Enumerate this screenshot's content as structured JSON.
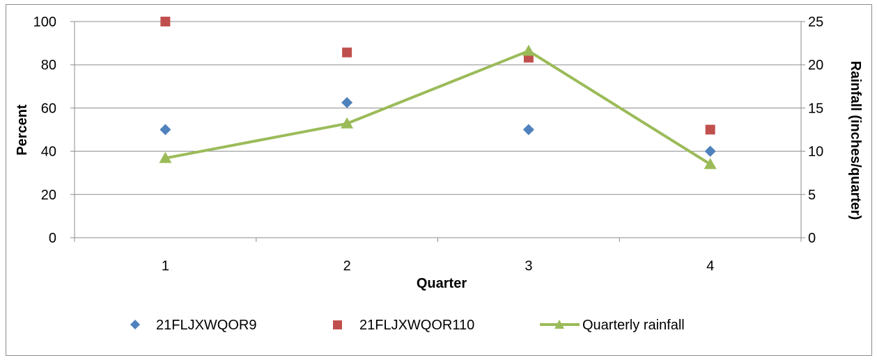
{
  "chart_data": {
    "type": "scatter",
    "categories": [
      "1",
      "2",
      "3",
      "4"
    ],
    "xlabel": "Quarter",
    "ylabel": "Percent",
    "y2label": "Rainfall (inches/quarter)",
    "ylim": [
      0,
      100
    ],
    "y2lim": [
      0,
      25
    ],
    "yticks": [
      "0",
      "20",
      "40",
      "60",
      "80",
      "100"
    ],
    "y2ticks": [
      "0",
      "5",
      "10",
      "15",
      "20",
      "25"
    ],
    "grid": true,
    "legend_position": "bottom",
    "series": [
      {
        "name": "21FLJXWQOR9",
        "type": "scatter",
        "axis": "left",
        "marker": "diamond",
        "color": "#4f81bd",
        "values": [
          50,
          62.5,
          50,
          40
        ]
      },
      {
        "name": "21FLJXWQOR110",
        "type": "scatter",
        "axis": "left",
        "marker": "square",
        "color": "#c0504d",
        "values": [
          100,
          85.7,
          83.3,
          50
        ]
      },
      {
        "name": "Quarterly rainfall",
        "type": "line",
        "axis": "right",
        "marker": "triangle",
        "color": "#9bbb59",
        "values": [
          9.2,
          13.2,
          21.6,
          8.5
        ]
      }
    ]
  }
}
